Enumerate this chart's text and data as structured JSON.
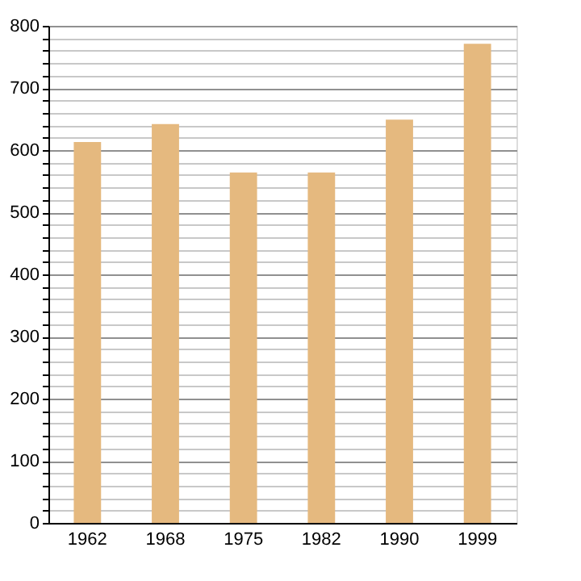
{
  "chart_data": {
    "type": "bar",
    "categories": [
      "1962",
      "1968",
      "1975",
      "1982",
      "1990",
      "1999"
    ],
    "values": [
      613,
      642,
      564,
      564,
      649,
      771
    ],
    "color": "#e5b97f",
    "ylim": [
      0,
      800
    ],
    "yticks": [
      0,
      {
        "value": 20,
        "label": null
      },
      {
        "value": 40,
        "label": null
      },
      {
        "value": 60,
        "label": null
      },
      {
        "value": 80,
        "label": null
      },
      100,
      {
        "value": 120,
        "label": null
      },
      {
        "value": 140,
        "label": null
      },
      {
        "value": 160,
        "label": null
      },
      {
        "value": 180,
        "label": null
      },
      200,
      {
        "value": 220,
        "label": null
      },
      {
        "value": 240,
        "label": null
      },
      {
        "value": 260,
        "label": null
      },
      {
        "value": 280,
        "label": null
      },
      300,
      {
        "value": 320,
        "label": null
      },
      {
        "value": 340,
        "label": null
      },
      {
        "value": 360,
        "label": null
      },
      {
        "value": 380,
        "label": null
      },
      400,
      {
        "value": 420,
        "label": null
      },
      {
        "value": 440,
        "label": null
      },
      {
        "value": 460,
        "label": null
      },
      {
        "value": 480,
        "label": null
      },
      500,
      {
        "value": 520,
        "label": null
      },
      {
        "value": 540,
        "label": null
      },
      {
        "value": 560,
        "label": null
      },
      {
        "value": 580,
        "label": null
      },
      600,
      {
        "value": 620,
        "label": null
      },
      {
        "value": 640,
        "label": null
      },
      {
        "value": 660,
        "label": null
      },
      {
        "value": 680,
        "label": null
      },
      700,
      {
        "value": 720,
        "label": null
      },
      {
        "value": 740,
        "label": null
      },
      {
        "value": 760,
        "label": null
      },
      {
        "value": 780,
        "label": null
      },
      800
    ],
    "grid": "y"
  }
}
